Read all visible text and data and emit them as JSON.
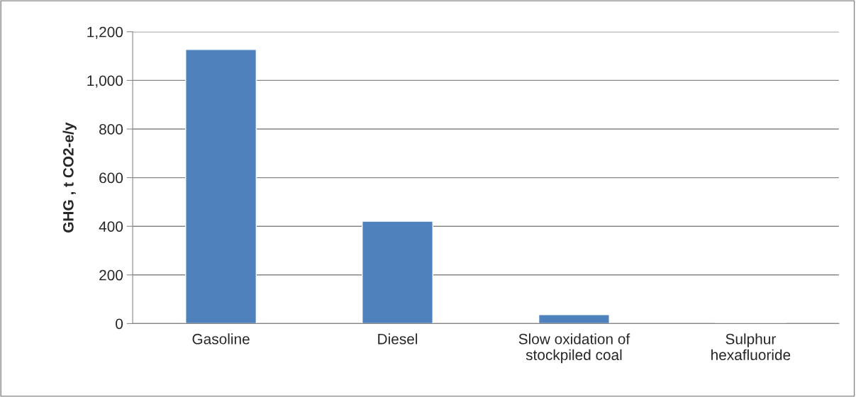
{
  "chart_data": {
    "type": "bar",
    "ylabel": "GHG , t CO2-e/y",
    "categories": [
      "Gasoline",
      "Diesel",
      "Slow oxidation of\nstockpiled coal",
      "Sulphur\nhexafluoride"
    ],
    "values": [
      1127,
      421,
      37,
      3
    ],
    "color": "#4f81bd",
    "ylim": [
      0,
      1200
    ],
    "yticks": [
      {
        "value": 0,
        "label": "0"
      },
      {
        "value": 200,
        "label": "200"
      },
      {
        "value": 400,
        "label": "400"
      },
      {
        "value": 600,
        "label": "600"
      },
      {
        "value": 800,
        "label": "800"
      },
      {
        "value": 1000,
        "label": "1,000"
      },
      {
        "value": 1200,
        "label": "1,200"
      }
    ],
    "grid": "y",
    "legend": false
  }
}
